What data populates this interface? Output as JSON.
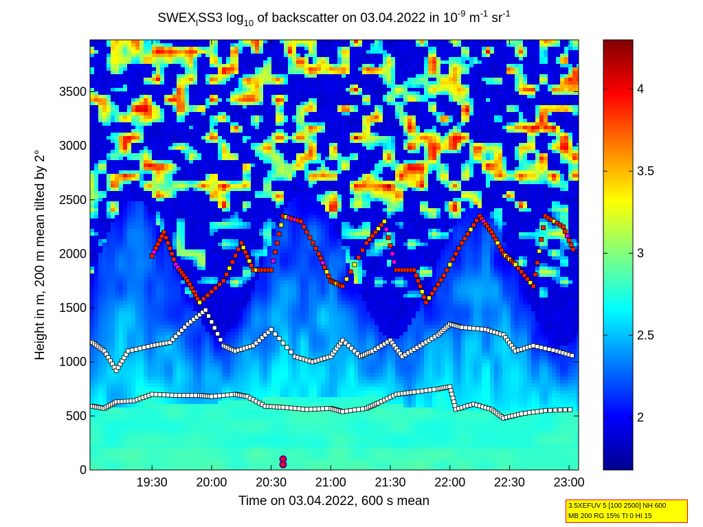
{
  "chart_data": {
    "type": "heatmap",
    "title_parts": {
      "pre": "SWEX",
      "sub1": "l",
      "mid": "SS3 log",
      "sub2": "10",
      "mid2": " of backscatter on 03.04.2022 in 10",
      "sup1": "-9",
      "mid3": " m",
      "sup2": "-1",
      "mid4": " sr",
      "sup3": "-1"
    },
    "xlabel": "Time on 03.04.2022, 600 s mean",
    "ylabel": "Height in m, 200 m mean tilted by 2°",
    "x_range_hours": [
      18.98,
      23.08
    ],
    "x_ticks": [
      {
        "value": 19.5,
        "label": "19:30"
      },
      {
        "value": 20.0,
        "label": "20:00"
      },
      {
        "value": 20.5,
        "label": "20:30"
      },
      {
        "value": 21.0,
        "label": "21:00"
      },
      {
        "value": 21.5,
        "label": "21:30"
      },
      {
        "value": 22.0,
        "label": "22:00"
      },
      {
        "value": 22.5,
        "label": "22:30"
      },
      {
        "value": 23.0,
        "label": "23:00"
      }
    ],
    "y_range": [
      0,
      3980
    ],
    "y_ticks": [
      {
        "value": 0,
        "label": "0"
      },
      {
        "value": 500,
        "label": "500"
      },
      {
        "value": 1000,
        "label": "1000"
      },
      {
        "value": 1500,
        "label": "1500"
      },
      {
        "value": 2000,
        "label": "2000"
      },
      {
        "value": 2500,
        "label": "2500"
      },
      {
        "value": 3000,
        "label": "3000"
      },
      {
        "value": 3500,
        "label": "3500"
      }
    ],
    "colorbar": {
      "range": [
        1.68,
        4.3
      ],
      "ticks": [
        {
          "value": 2,
          "label": "2"
        },
        {
          "value": 2.5,
          "label": "2.5"
        },
        {
          "value": 3,
          "label": "3"
        },
        {
          "value": 3.5,
          "label": "3.5"
        },
        {
          "value": 4,
          "label": "4"
        }
      ]
    },
    "colormap": [
      "#00008f",
      "#0000ff",
      "#0080ff",
      "#00ffff",
      "#80ff80",
      "#ffff00",
      "#ff8000",
      "#ff0000",
      "#800000"
    ],
    "layer_traces": [
      {
        "name": "mixing-layer",
        "color": "#ffffff",
        "points": [
          [
            19.0,
            590
          ],
          [
            19.1,
            570
          ],
          [
            19.2,
            630
          ],
          [
            19.35,
            640
          ],
          [
            19.5,
            700
          ],
          [
            19.7,
            690
          ],
          [
            19.9,
            690
          ],
          [
            20.0,
            680
          ],
          [
            20.2,
            700
          ],
          [
            20.3,
            680
          ],
          [
            20.45,
            590
          ],
          [
            20.6,
            580
          ],
          [
            20.8,
            560
          ],
          [
            21.0,
            570
          ],
          [
            21.1,
            540
          ],
          [
            21.3,
            570
          ],
          [
            21.4,
            620
          ],
          [
            21.55,
            700
          ],
          [
            21.7,
            720
          ],
          [
            21.9,
            750
          ],
          [
            22.0,
            770
          ],
          [
            22.05,
            560
          ],
          [
            22.2,
            610
          ],
          [
            22.35,
            560
          ],
          [
            22.45,
            480
          ],
          [
            22.6,
            520
          ],
          [
            22.8,
            550
          ],
          [
            23.05,
            560
          ]
        ]
      },
      {
        "name": "lower-layer",
        "color": "#ffffff",
        "points": [
          [
            19.0,
            1180
          ],
          [
            19.1,
            1100
          ],
          [
            19.2,
            920
          ],
          [
            19.3,
            1100
          ],
          [
            19.5,
            1150
          ],
          [
            19.65,
            1180
          ],
          [
            19.8,
            1350
          ],
          [
            19.95,
            1480
          ],
          [
            20.1,
            1150
          ],
          [
            20.2,
            1100
          ],
          [
            20.35,
            1150
          ],
          [
            20.5,
            1300
          ],
          [
            20.7,
            1050
          ],
          [
            20.85,
            1000
          ],
          [
            21.0,
            1050
          ],
          [
            21.1,
            1200
          ],
          [
            21.25,
            1050
          ],
          [
            21.35,
            1100
          ],
          [
            21.5,
            1200
          ],
          [
            21.6,
            1050
          ],
          [
            21.75,
            1150
          ],
          [
            21.9,
            1250
          ],
          [
            22.0,
            1350
          ],
          [
            22.1,
            1320
          ],
          [
            22.3,
            1300
          ],
          [
            22.45,
            1250
          ],
          [
            22.55,
            1100
          ],
          [
            22.7,
            1150
          ],
          [
            22.9,
            1100
          ],
          [
            23.05,
            1050
          ]
        ]
      },
      {
        "name": "upper-layer",
        "color": "#ff2000",
        "points": [
          [
            19.5,
            1980
          ],
          [
            19.6,
            2200
          ],
          [
            19.7,
            1900
          ],
          [
            19.8,
            1750
          ],
          [
            19.9,
            1550
          ],
          [
            20.1,
            1750
          ],
          [
            20.25,
            2100
          ],
          [
            20.35,
            1850
          ],
          [
            20.5,
            1850
          ],
          [
            20.6,
            2350
          ],
          [
            20.75,
            2300
          ],
          [
            20.9,
            2000
          ],
          [
            21.0,
            1750
          ],
          [
            21.1,
            1700
          ],
          [
            21.3,
            2100
          ],
          [
            21.45,
            2300
          ],
          [
            21.55,
            1850
          ],
          [
            21.7,
            1850
          ],
          [
            21.8,
            1550
          ],
          [
            21.95,
            1800
          ],
          [
            22.1,
            2100
          ],
          [
            22.25,
            2350
          ],
          [
            22.35,
            2200
          ],
          [
            22.45,
            2000
          ],
          [
            22.55,
            1900
          ],
          [
            22.7,
            1700
          ],
          [
            22.8,
            2350
          ],
          [
            22.95,
            2250
          ],
          [
            23.05,
            2000
          ]
        ]
      }
    ],
    "legend_markers": [
      {
        "value_hint": "precipitation",
        "x": 20.6,
        "y": 100,
        "color": "#ff0000"
      },
      {
        "value_hint": "precipitation",
        "x": 20.6,
        "y": 50,
        "color": "#ff0000"
      }
    ]
  },
  "info_box": {
    "line1": "3.5XEFUV 5 [100 2500] NH 600",
    "line2": "MB 200 RG 15% TI 0 HI 15"
  }
}
